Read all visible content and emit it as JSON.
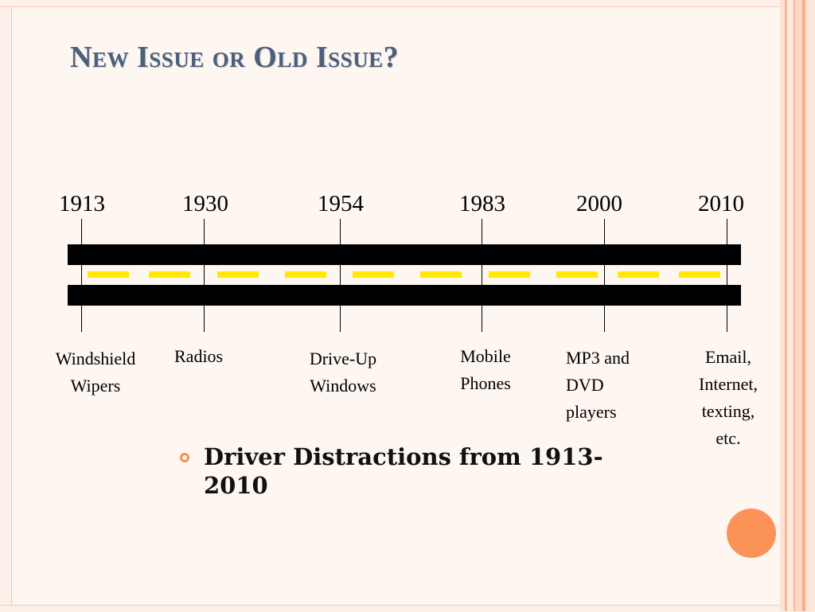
{
  "slide": {
    "title": "New Issue or Old Issue?",
    "bullet": {
      "line1": "Driver Distractions from 1913-",
      "line2": "2010"
    }
  },
  "timeline": {
    "years": [
      "1913",
      "1930",
      "1954",
      "1983",
      "2000",
      "2010"
    ],
    "events": [
      {
        "lines": [
          "Windshield",
          "Wipers"
        ]
      },
      {
        "lines": [
          "Radios"
        ]
      },
      {
        "lines": [
          "Drive-Up",
          "Windows"
        ]
      },
      {
        "lines": [
          "Mobile",
          "Phones"
        ]
      },
      {
        "lines": [
          "MP3 and",
          "DVD",
          "players"
        ]
      },
      {
        "lines": [
          "Email,",
          "Internet,",
          "texting,",
          "etc."
        ]
      }
    ]
  },
  "colors": {
    "title": "#4e5f7a",
    "road": "#000000",
    "lane_dash": "#ffea00",
    "accent": "#fb9358"
  }
}
